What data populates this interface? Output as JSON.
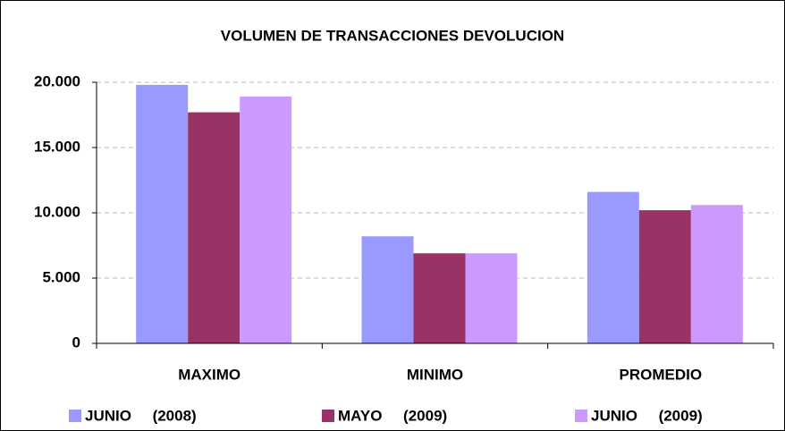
{
  "chart_data": {
    "type": "bar",
    "title": "VOLUMEN DE TRANSACCIONES DEVOLUCION",
    "categories": [
      "MAXIMO",
      "MINIMO",
      "PROMEDIO"
    ],
    "series": [
      {
        "name": "JUNIO     (2008)",
        "color": "#9999ff",
        "values": [
          19800,
          8200,
          11600
        ]
      },
      {
        "name": "MAYO     (2009)",
        "color": "#993366",
        "values": [
          17700,
          6900,
          10200
        ]
      },
      {
        "name": "JUNIO     (2009)",
        "color": "#cc99ff",
        "values": [
          18900,
          6900,
          10600
        ]
      }
    ],
    "ylim": [
      0,
      20000
    ],
    "yticks": [
      0,
      {
        "value": 5000,
        "label": "5.000"
      },
      {
        "value": 10000,
        "label": "10.000"
      },
      {
        "value": 15000,
        "label": "15.000"
      },
      {
        "value": 20000,
        "label": "20.000"
      }
    ],
    "grid": true,
    "legend": "bottom"
  }
}
